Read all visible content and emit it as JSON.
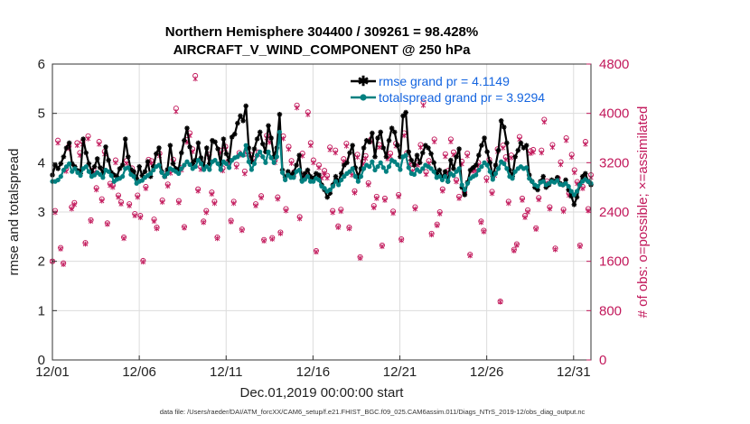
{
  "chart_data": {
    "type": "line",
    "title_line1": "Northern Hemisphere 304400 / 309261 = 98.428%",
    "title_line2": "AIRCRAFT_V_WIND_COMPONENT @ 250 hPa",
    "xlabel": "Dec.01,2019 00:00:00 start",
    "ylabel_left": "rmse and totalspread",
    "ylabel_right": "# of obs: o=possible; ×=assimilated",
    "footnote": "data file: /Users/raeder/DAI/ATM_forcXX/CAM6_setup/f.e21.FHIST_BGC.f09_025.CAM6assim.011/Diags_NTrS_2019-12/obs_diag_output.nc",
    "xlim": [
      1,
      32
    ],
    "ylim_left": [
      0,
      6
    ],
    "ylim_right": [
      0,
      4800
    ],
    "x_ticks": [
      1,
      6,
      11,
      16,
      21,
      26,
      31
    ],
    "x_tick_labels": [
      "12/01",
      "12/06",
      "12/11",
      "12/16",
      "12/21",
      "12/26",
      "12/31"
    ],
    "y_ticks_left": [
      "0",
      "1",
      "2",
      "3",
      "4",
      "5",
      "6"
    ],
    "y_ticks_right": [
      "0",
      "800",
      "1600",
      "2400",
      "3200",
      "4000",
      "4800"
    ],
    "grid": true,
    "legend": [
      "rmse grand pr = 4.1149",
      "totalspread grand pr = 3.9294"
    ],
    "colors": {
      "rmse": "#000000",
      "spread": "#008080",
      "obs": "#c2185b",
      "legend_text": "#1565e0"
    },
    "series": [
      {
        "name": "rmse",
        "values": [
          3.75,
          3.95,
          3.88,
          3.98,
          4.12,
          4.3,
          4.4,
          3.98,
          3.92,
          3.84,
          3.78,
          4.48,
          4.2,
          3.98,
          3.82,
          3.92,
          4.08,
          3.9,
          3.78,
          4.32,
          4.05,
          3.8,
          3.75,
          3.72,
          3.88,
          3.95,
          4.48,
          4.12,
          3.86,
          3.82,
          3.68,
          3.92,
          3.74,
          3.82,
          4.02,
          3.72,
          3.92,
          4.18,
          4.3,
          3.82,
          3.72,
          3.86,
          4.35,
          3.98,
          3.88,
          3.86,
          4.2,
          4.45,
          4.7,
          4.32,
          3.98,
          4.05,
          4.4,
          4.1,
          3.92,
          4.3,
          3.98,
          4.45,
          4.42,
          4.28,
          3.98,
          4.48,
          4.18,
          4.05,
          4.52,
          4.58,
          4.8,
          4.95,
          4.85,
          5.15,
          4.3,
          4.02,
          4.28,
          4.48,
          4.62,
          4.38,
          4.22,
          4.75,
          4.5,
          4.12,
          4.3,
          4.98,
          3.85,
          3.7,
          3.82,
          3.75,
          3.8,
          3.95,
          4.15,
          3.65,
          3.78,
          3.85,
          3.72,
          3.68,
          3.78,
          3.75,
          3.55,
          3.45,
          3.3,
          3.38,
          3.55,
          3.72,
          3.62,
          3.78,
          3.95,
          4.0,
          4.2,
          4.35,
          3.9,
          3.72,
          3.88,
          4.3,
          4.45,
          4.42,
          4.6,
          4.12,
          4.5,
          4.62,
          4.3,
          4.12,
          4.45,
          4.7,
          4.62,
          4.35,
          4.12,
          4.95,
          5.02,
          4.22,
          4.05,
          3.95,
          4.15,
          4.0,
          4.2,
          4.35,
          4.3,
          4.18,
          4.0,
          3.78,
          3.85,
          3.7,
          3.82,
          3.62,
          4.05,
          3.88,
          4.12,
          4.28,
          3.5,
          3.35,
          3.6,
          3.85,
          3.9,
          3.95,
          4.15,
          4.35,
          4.5,
          4.22,
          4.0,
          3.72,
          3.95,
          4.25,
          4.85,
          4.72,
          4.4,
          3.85,
          3.72,
          4.12,
          4.25,
          4.4,
          4.3,
          4.35,
          3.75,
          3.62,
          3.5,
          3.45,
          3.62,
          3.72,
          3.5,
          3.55,
          3.65,
          3.62,
          3.7,
          3.58,
          3.55,
          3.65,
          3.45,
          3.32,
          3.15,
          3.3,
          3.55,
          3.72,
          3.78,
          3.62,
          3.55
        ]
      },
      {
        "name": "totalspread",
        "values": [
          3.62,
          3.62,
          3.65,
          3.72,
          3.85,
          3.92,
          3.98,
          3.82,
          3.88,
          3.8,
          3.74,
          3.88,
          3.92,
          3.82,
          3.72,
          3.75,
          3.8,
          3.76,
          3.7,
          3.85,
          3.82,
          3.74,
          3.62,
          3.66,
          3.68,
          3.72,
          3.88,
          3.9,
          3.76,
          3.72,
          3.58,
          3.62,
          3.64,
          3.7,
          3.74,
          3.78,
          3.85,
          3.92,
          3.95,
          3.8,
          3.72,
          3.78,
          3.88,
          3.85,
          3.82,
          3.78,
          3.88,
          3.95,
          4.02,
          3.96,
          3.88,
          3.92,
          4.05,
          3.98,
          3.86,
          3.92,
          3.86,
          4.02,
          4.05,
          3.98,
          3.86,
          4.02,
          3.98,
          3.9,
          4.05,
          4.1,
          4.12,
          4.18,
          4.15,
          4.35,
          4.02,
          3.86,
          3.98,
          4.15,
          4.22,
          4.12,
          4.0,
          4.22,
          4.1,
          4.0,
          4.12,
          4.62,
          3.8,
          3.65,
          3.75,
          3.7,
          3.7,
          3.82,
          3.85,
          3.62,
          3.66,
          3.72,
          3.62,
          3.62,
          3.68,
          3.65,
          3.52,
          3.48,
          3.42,
          3.45,
          3.52,
          3.62,
          3.55,
          3.65,
          3.72,
          3.78,
          3.82,
          3.88,
          3.72,
          3.62,
          3.72,
          3.88,
          3.95,
          3.92,
          4.02,
          3.85,
          3.92,
          4.0,
          3.9,
          3.82,
          3.92,
          4.05,
          4.02,
          3.96,
          3.86,
          4.12,
          4.15,
          3.9,
          3.78,
          3.76,
          3.86,
          3.82,
          3.88,
          3.95,
          3.92,
          3.88,
          3.82,
          3.7,
          3.72,
          3.65,
          3.72,
          3.62,
          3.78,
          3.74,
          3.82,
          3.88,
          3.55,
          3.45,
          3.58,
          3.68,
          3.72,
          3.75,
          3.85,
          3.92,
          4.0,
          3.95,
          3.82,
          3.66,
          3.78,
          3.88,
          4.02,
          3.98,
          3.88,
          3.72,
          3.68,
          3.82,
          3.88,
          3.92,
          3.88,
          3.9,
          3.68,
          3.62,
          3.55,
          3.52,
          3.6,
          3.62,
          3.55,
          3.58,
          3.62,
          3.6,
          3.64,
          3.56,
          3.55,
          3.58,
          3.52,
          3.42,
          3.35,
          3.42,
          3.55,
          3.62,
          3.66,
          3.62,
          3.58
        ]
      },
      {
        "name": "obs_possible",
        "values": [
          1600,
          2420,
          3560,
          1820,
          1570,
          3100,
          3470,
          2480,
          2550,
          3520,
          3360,
          3540,
          1900,
          3630,
          2270,
          3080,
          2790,
          3540,
          2610,
          3380,
          2220,
          2860,
          2830,
          3240,
          2670,
          2560,
          1990,
          3230,
          2530,
          3110,
          2370,
          2670,
          2340,
          1610,
          2810,
          3250,
          3230,
          2280,
          2150,
          3350,
          2590,
          3020,
          2850,
          3070,
          3250,
          4080,
          2580,
          3120,
          2160,
          3570,
          3680,
          3420,
          4610,
          2770,
          3130,
          2250,
          2420,
          3330,
          2720,
          2570,
          1990,
          3400,
          3110,
          3460,
          3220,
          2260,
          2570,
          3170,
          3360,
          2120,
          3060,
          3370,
          3330,
          3270,
          2530,
          3370,
          2660,
          1950,
          3640,
          3570,
          1980,
          3240,
          2640,
          2070,
          3630,
          2450,
          3460,
          3230,
          3050,
          4130,
          2320,
          3350,
          3010,
          4020,
          3520,
          3240,
          1770,
          3160,
          2990,
          3070,
          2990,
          3450,
          2420,
          3400,
          2170,
          2440,
          3260,
          3510,
          2150,
          3040,
          2740,
          3330,
          1670,
          3220,
          3310,
          2870,
          3580,
          2500,
          2650,
          3490,
          1860,
          2620,
          3300,
          3350,
          2410,
          3510,
          2680,
          1960,
          3680,
          3360,
          3210,
          3100,
          2480,
          3200,
          3490,
          4180,
          3050,
          3230,
          2050,
          3580,
          2200,
          2400,
          2770,
          3340,
          3070,
          3580,
          3370,
          2920,
          2650,
          3220,
          2720,
          3350,
          1710,
          3100,
          3110,
          3200,
          2250,
          2100,
          2950,
          3250,
          2730,
          3030,
          3420,
          950,
          3480,
          3290,
          2570,
          3320,
          1790,
          1880,
          3620,
          2620,
          2340,
          2430,
          3390,
          3410,
          2140,
          2630,
          3400,
          3900,
          2900,
          2480,
          3490,
          1810,
          2950,
          3210,
          2440,
          3600,
          2700,
          3330,
          3080,
          2890,
          1860,
          2810,
          3540,
          2450,
          3000
        ]
      },
      {
        "name": "obs_assimilated",
        "values": [
          1600,
          2390,
          3520,
          1800,
          1550,
          3060,
          3430,
          2450,
          2520,
          3480,
          3320,
          3500,
          1880,
          3590,
          2250,
          3040,
          2760,
          3500,
          2580,
          3340,
          2200,
          2830,
          2800,
          3200,
          2640,
          2530,
          1970,
          3190,
          2500,
          3070,
          2340,
          2640,
          2310,
          1590,
          2780,
          3210,
          3190,
          2250,
          2130,
          3310,
          2560,
          2980,
          2820,
          3030,
          3210,
          4030,
          2550,
          3080,
          2140,
          3530,
          3640,
          3380,
          4560,
          2740,
          3090,
          2230,
          2390,
          3290,
          2690,
          2540,
          1970,
          3360,
          3070,
          3420,
          3180,
          2240,
          2540,
          3130,
          3320,
          2100,
          3020,
          3330,
          3290,
          3230,
          2500,
          3330,
          2630,
          1930,
          3600,
          3530,
          1960,
          3200,
          2610,
          2050,
          3590,
          2420,
          3420,
          3190,
          3010,
          4090,
          2290,
          3310,
          2970,
          3980,
          3480,
          3200,
          1750,
          3120,
          2950,
          3030,
          2950,
          3410,
          2390,
          3360,
          2150,
          2410,
          3220,
          3470,
          2130,
          3000,
          2710,
          3290,
          1650,
          3180,
          3270,
          2840,
          3540,
          2470,
          2620,
          3450,
          1840,
          2590,
          3260,
          3310,
          2380,
          3470,
          2650,
          1940,
          3640,
          3320,
          3170,
          3060,
          2450,
          3160,
          3450,
          4130,
          3010,
          3190,
          2030,
          3540,
          2180,
          2370,
          2740,
          3300,
          3030,
          3540,
          3330,
          2890,
          2620,
          3180,
          2690,
          3310,
          1690,
          3060,
          3070,
          3160,
          2230,
          2080,
          2910,
          3210,
          2700,
          2990,
          3380,
          940,
          3440,
          3250,
          2540,
          3280,
          1770,
          1860,
          3580,
          2590,
          2310,
          2400,
          3350,
          3370,
          2120,
          2600,
          3360,
          3860,
          2870,
          2450,
          3450,
          1790,
          2910,
          3170,
          2410,
          3560,
          2670,
          3290,
          3040,
          2860,
          1840,
          2780,
          3500,
          2420,
          2960
        ]
      }
    ]
  }
}
